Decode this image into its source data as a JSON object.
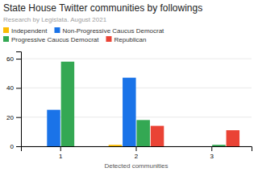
{
  "chart_data": {
    "type": "bar",
    "title": "State House Twitter communities by followings",
    "subtitle": "Research by Legislata. August 2021",
    "x_label": "Detected communities",
    "categories": [
      "1",
      "2",
      "3"
    ],
    "series": [
      {
        "name": "Independent",
        "color": "#FBBC04",
        "values": [
          0,
          1,
          0
        ]
      },
      {
        "name": "Non-Progressive Caucus Democrat",
        "color": "#1A73E8",
        "values": [
          25,
          47,
          0
        ]
      },
      {
        "name": "Progressive Caucus Democrat",
        "color": "#34A853",
        "values": [
          58,
          18,
          1
        ]
      },
      {
        "name": "Republican",
        "color": "#EA4335",
        "values": [
          0,
          14,
          11
        ]
      }
    ],
    "ylim": [
      0,
      65
    ],
    "yticks": [
      0,
      20,
      40,
      60
    ],
    "grid": true,
    "legend": "top"
  }
}
